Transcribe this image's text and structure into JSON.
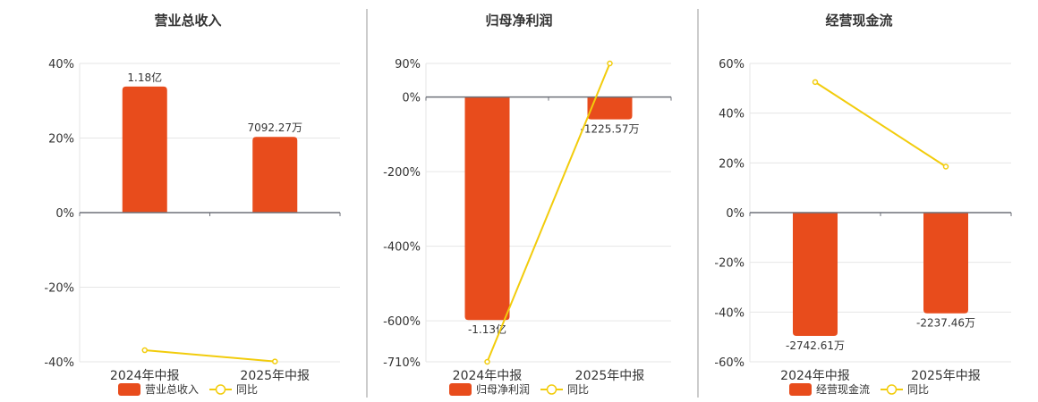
{
  "colors": {
    "bar": "#E84C1C",
    "line": "#F2CC0C",
    "grid": "#E6E6E6",
    "axis": "#6E7079",
    "divider": "#999999",
    "text": "#333333"
  },
  "chart_data": [
    {
      "type": "bar",
      "title": "营业总收入",
      "categories": [
        "2024年中报",
        "2025年中报"
      ],
      "series": [
        {
          "name": "营业总收入",
          "type": "bar",
          "values": [
            33.8,
            20.3
          ],
          "labels": [
            "1.18亿",
            "7092.27万"
          ]
        },
        {
          "name": "同比",
          "type": "line",
          "values": [
            -36.9,
            -39.9
          ]
        }
      ],
      "ylim": [
        -40,
        40
      ],
      "yticks": [
        40,
        20,
        0,
        -20,
        -40
      ],
      "ytick_labels": [
        "40%",
        "20%",
        "0%",
        "-20%",
        "-40%"
      ],
      "legend": "bottom",
      "grid": true
    },
    {
      "type": "bar",
      "title": "归母净利润",
      "categories": [
        "2024年中报",
        "2025年中报"
      ],
      "series": [
        {
          "name": "归母净利润",
          "type": "bar",
          "values": [
            -598,
            -60
          ],
          "labels": [
            "-1.13亿",
            "-1225.57万"
          ]
        },
        {
          "name": "同比",
          "type": "line",
          "values": [
            -710,
            90
          ]
        }
      ],
      "ylim": [
        -710,
        90
      ],
      "yticks": [
        90,
        0,
        -200,
        -400,
        -600,
        -710
      ],
      "ytick_labels": [
        "90%",
        "0%",
        "-200%",
        "-400%",
        "-600%",
        "-710%"
      ],
      "legend": "bottom",
      "grid": true
    },
    {
      "type": "bar",
      "title": "经营现金流",
      "categories": [
        "2024年中报",
        "2025年中报"
      ],
      "series": [
        {
          "name": "经营现金流",
          "type": "bar",
          "values": [
            -49.6,
            -40.5
          ],
          "labels": [
            "-2742.61万",
            "-2237.46万"
          ]
        },
        {
          "name": "同比",
          "type": "line",
          "values": [
            52.5,
            18.5
          ]
        }
      ],
      "ylim": [
        -60,
        60
      ],
      "yticks": [
        60,
        40,
        20,
        0,
        -20,
        -40,
        -60
      ],
      "ytick_labels": [
        "60%",
        "40%",
        "20%",
        "0%",
        "-20%",
        "-40%",
        "-60%"
      ],
      "legend": "bottom",
      "grid": true
    }
  ]
}
